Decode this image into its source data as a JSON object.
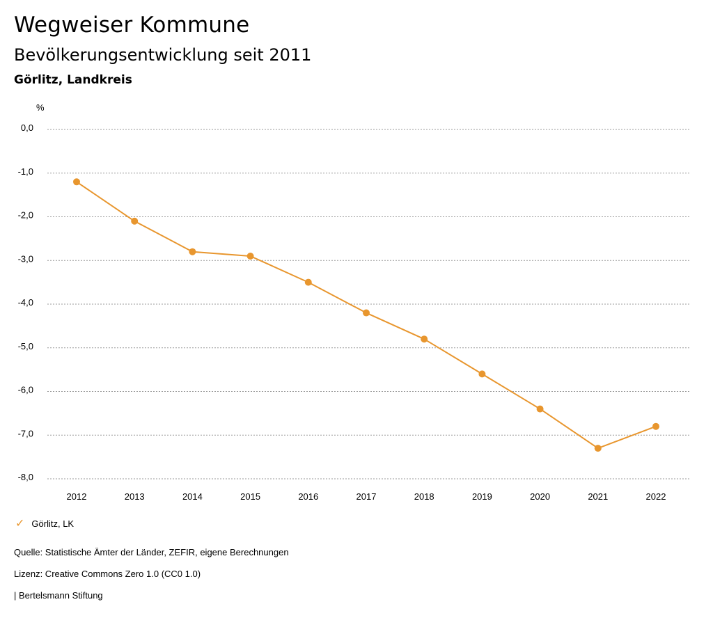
{
  "header": {
    "title": "Wegweiser Kommune",
    "subtitle": "Bevölkerungsentwicklung seit 2011",
    "region": "Görlitz, Landkreis"
  },
  "chart_data": {
    "type": "line",
    "ylabel": "%",
    "xlabel": "",
    "ylim": [
      -8,
      0
    ],
    "yticks": [
      "0,0",
      "-1,0",
      "-2,0",
      "-3,0",
      "-4,0",
      "-5,0",
      "-6,0",
      "-7,0",
      "-8,0"
    ],
    "x": [
      "2012",
      "2013",
      "2014",
      "2015",
      "2016",
      "2017",
      "2018",
      "2019",
      "2020",
      "2021",
      "2022"
    ],
    "series": [
      {
        "name": "Görlitz, LK",
        "values": [
          -1.2,
          -2.1,
          -2.8,
          -2.9,
          -3.5,
          -4.2,
          -4.8,
          -5.6,
          -6.4,
          -7.3,
          -6.8
        ]
      }
    ],
    "grid": true,
    "legend": "bottom-left",
    "color": "#e8962e"
  },
  "legend": {
    "icon": "check-icon",
    "label": "Görlitz, LK"
  },
  "footer": {
    "source": "Quelle: Statistische Ämter der Länder, ZEFIR, eigene Berechnungen",
    "license": "Lizenz: Creative Commons Zero 1.0 (CC0 1.0)",
    "publisher": "| Bertelsmann Stiftung"
  }
}
